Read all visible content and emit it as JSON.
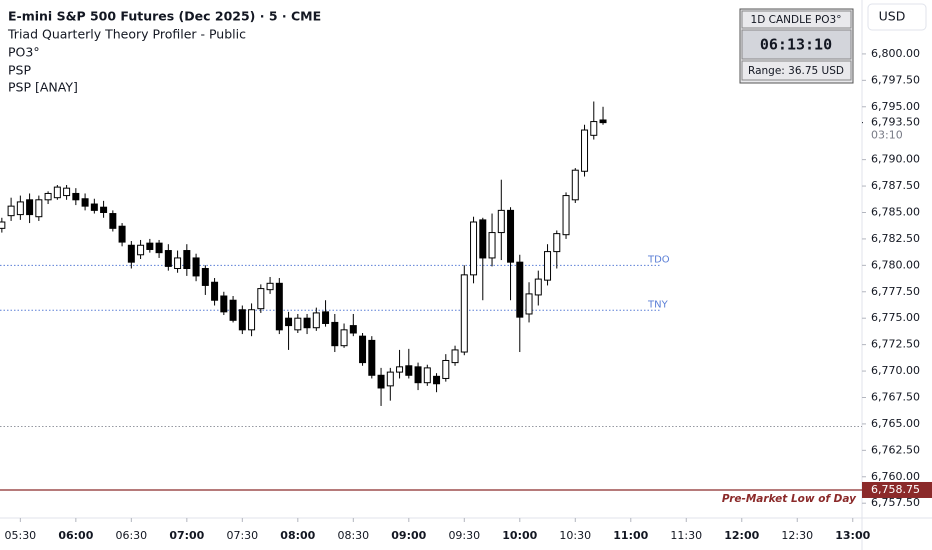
{
  "chart_data": {
    "type": "candlestick",
    "title": "E-mini S&P 500 Futures (Dec 2025) · 5 · CME",
    "indicators": [
      "Triad Quarterly Theory Profiler - Public",
      "PO3°",
      "PSP",
      "PSP [ANAY]"
    ],
    "currency": "USD",
    "panel": {
      "title": "1D CANDLE PO3°",
      "timer": "06:13:10",
      "range": "Range: 36.75 USD"
    },
    "x": [
      "05:20",
      "05:25",
      "05:30",
      "05:35",
      "05:40",
      "05:45",
      "05:50",
      "05:55",
      "06:00",
      "06:05",
      "06:10",
      "06:15",
      "06:20",
      "06:25",
      "06:30",
      "06:35",
      "06:40",
      "06:45",
      "06:50",
      "06:55",
      "07:00",
      "07:05",
      "07:10",
      "07:15",
      "07:20",
      "07:25",
      "07:30",
      "07:35",
      "07:40",
      "07:45",
      "07:50",
      "07:55",
      "08:00",
      "08:05",
      "08:10",
      "08:15",
      "08:20",
      "08:25",
      "08:30",
      "08:35",
      "08:40",
      "08:45",
      "08:50",
      "08:55",
      "09:00",
      "09:05",
      "09:10",
      "09:15",
      "09:20",
      "09:25",
      "09:30",
      "09:35",
      "09:40",
      "09:45",
      "09:50",
      "09:55",
      "10:00",
      "10:05",
      "10:10",
      "10:15",
      "10:20",
      "10:25",
      "10:30",
      "10:35",
      "10:40",
      "10:45"
    ],
    "open": [
      6783.5,
      6784.7,
      6784.8,
      6786.2,
      6784.6,
      6786.2,
      6786.4,
      6786.6,
      6786.8,
      6786.3,
      6785.8,
      6785.5,
      6784.9,
      6783.7,
      6781.9,
      6781.0,
      6782.1,
      6782.1,
      6781.4,
      6779.7,
      6781.4,
      6780.7,
      6779.7,
      6778.4,
      6777.1,
      6776.7,
      6775.8,
      6773.9,
      6775.9,
      6777.7,
      6778.3,
      6775.0,
      6773.9,
      6775.0,
      6774.1,
      6775.6,
      6774.6,
      6772.4,
      6774.3,
      6773.3,
      6772.9,
      6769.6,
      6768.6,
      6769.9,
      6770.5,
      6770.4,
      6768.9,
      6769.5,
      6769.3,
      6770.8,
      6771.8,
      6779.1,
      6784.3,
      6780.7,
      6783.1,
      6785.2,
      6780.3,
      6775.4,
      6777.2,
      6778.6,
      6781.3,
      6782.9,
      6786.2,
      6788.9,
      6792.3,
      6793.75
    ],
    "high": [
      6784.5,
      6786.4,
      6786.6,
      6786.8,
      6786.6,
      6787.0,
      6787.6,
      6787.6,
      6787.3,
      6786.8,
      6786.3,
      6786.1,
      6785.2,
      6784.0,
      6782.3,
      6782.4,
      6782.5,
      6782.4,
      6782.0,
      6781.4,
      6782.0,
      6781.1,
      6780.0,
      6778.8,
      6777.5,
      6777.1,
      6776.2,
      6776.4,
      6778.2,
      6778.9,
      6778.8,
      6775.6,
      6775.4,
      6775.4,
      6776.0,
      6776.7,
      6775.4,
      6774.5,
      6775.4,
      6773.6,
      6773.3,
      6770.3,
      6770.3,
      6772.0,
      6772.1,
      6770.8,
      6770.6,
      6769.8,
      6771.6,
      6772.4,
      6780.0,
      6784.6,
      6784.5,
      6784.9,
      6788.1,
      6785.5,
      6781.0,
      6778.4,
      6779.5,
      6782.0,
      6783.3,
      6786.9,
      6789.2,
      6793.3,
      6795.5,
      6795.0
    ],
    "low": [
      6783.1,
      6784.2,
      6784.3,
      6784.0,
      6784.2,
      6785.8,
      6786.2,
      6786.2,
      6785.7,
      6785.2,
      6784.9,
      6784.5,
      6783.2,
      6781.8,
      6779.7,
      6780.6,
      6781.2,
      6780.7,
      6779.5,
      6779.3,
      6779.0,
      6778.5,
      6777.2,
      6776.2,
      6775.3,
      6774.6,
      6773.5,
      6773.3,
      6775.5,
      6777.3,
      6773.5,
      6772.0,
      6773.6,
      6773.5,
      6773.8,
      6774.2,
      6771.8,
      6772.2,
      6773.3,
      6770.5,
      6769.3,
      6766.7,
      6767.2,
      6769.3,
      6769.3,
      6768.2,
      6768.6,
      6768.0,
      6769.0,
      6770.5,
      6771.5,
      6778.3,
      6776.7,
      6779.9,
      6780.5,
      6776.7,
      6771.8,
      6774.6,
      6776.2,
      6778.1,
      6779.7,
      6782.5,
      6785.9,
      6788.4,
      6791.9,
      6793.3
    ],
    "close": [
      6784.1,
      6785.6,
      6786.0,
      6784.8,
      6786.2,
      6786.8,
      6787.4,
      6787.3,
      6786.2,
      6785.6,
      6785.2,
      6785.0,
      6783.5,
      6782.2,
      6780.3,
      6781.9,
      6781.5,
      6781.2,
      6779.9,
      6780.7,
      6779.7,
      6779.0,
      6778.1,
      6776.7,
      6775.6,
      6774.8,
      6773.9,
      6775.8,
      6777.8,
      6778.3,
      6773.9,
      6774.3,
      6775.0,
      6774.1,
      6775.5,
      6774.5,
      6772.4,
      6773.9,
      6773.6,
      6770.8,
      6769.6,
      6768.4,
      6769.9,
      6770.4,
      6769.6,
      6768.9,
      6770.3,
      6768.8,
      6771.0,
      6772.0,
      6779.1,
      6784.1,
      6780.7,
      6783.1,
      6785.2,
      6780.3,
      6775.1,
      6777.3,
      6778.7,
      6781.3,
      6783.0,
      6786.6,
      6789.0,
      6792.8,
      6793.6,
      6793.5
    ],
    "up_color": "#ffffff",
    "down_color": "#000000",
    "outline_color": "#000000",
    "xlim": [
      "05:19",
      "13:05"
    ],
    "xticks": [
      "05:30",
      "06:00",
      "06:30",
      "07:00",
      "07:30",
      "08:00",
      "08:30",
      "09:00",
      "09:30",
      "10:00",
      "10:30",
      "11:00",
      "11:30",
      "12:00",
      "12:30",
      "13:00"
    ],
    "ylim": [
      6756.1,
      6805.1
    ],
    "yticks": [
      {
        "value": 6757.5,
        "label": "6,757.50"
      },
      {
        "value": 6760,
        "label": "6,760.00"
      },
      {
        "value": 6762.5,
        "label": "6,762.50"
      },
      {
        "value": 6765,
        "label": "6,765.00"
      },
      {
        "value": 6767.5,
        "label": "6,767.50"
      },
      {
        "value": 6770,
        "label": "6,770.00"
      },
      {
        "value": 6772.5,
        "label": "6,772.50"
      },
      {
        "value": 6775,
        "label": "6,775.00"
      },
      {
        "value": 6777.5,
        "label": "6,777.50"
      },
      {
        "value": 6780,
        "label": "6,780.00"
      },
      {
        "value": 6782.5,
        "label": "6,782.50"
      },
      {
        "value": 6785,
        "label": "6,785.00"
      },
      {
        "value": 6787.5,
        "label": "6,787.50"
      },
      {
        "value": 6790,
        "label": "6,790.00"
      },
      {
        "value": 6795,
        "label": "6,795.00"
      },
      {
        "value": 6797.5,
        "label": "6,797.50"
      },
      {
        "value": 6800,
        "label": "6,800.00"
      }
    ],
    "levels": [
      {
        "label": "TDO",
        "value": 6780.0,
        "color": "#5b7fd6",
        "style": "dotted"
      },
      {
        "label": "TNY",
        "value": 6775.75,
        "color": "#5b7fd6",
        "style": "dotted"
      },
      {
        "value": 6764.75,
        "color": "#9598a1",
        "style": "dotted"
      },
      {
        "label": "Pre-Market Low of Day",
        "value": 6758.75,
        "value_label": "6,758.75",
        "color": "#8b2a2a",
        "style": "solid"
      }
    ],
    "last_price": {
      "value": 6793.5,
      "label": "6,793.50",
      "countdown": "03:10"
    }
  }
}
